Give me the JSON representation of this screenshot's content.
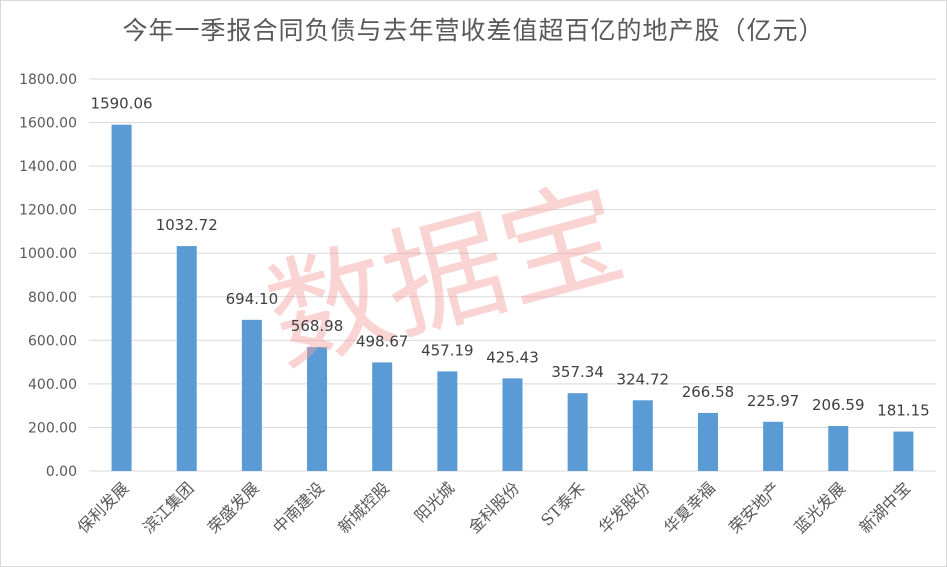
{
  "chart_data": {
    "type": "bar",
    "title": "今年一季报合同负债与去年营收差值超百亿的地产股（亿元）",
    "categories": [
      "保利发展",
      "滨江集团",
      "荣盛发展",
      "中南建设",
      "新城控股",
      "阳光城",
      "金科股份",
      "ST泰禾",
      "华发股份",
      "华夏幸福",
      "荣安地产",
      "蓝光发展",
      "新湖中宝"
    ],
    "values": [
      1590.06,
      1032.72,
      694.1,
      568.98,
      498.67,
      457.19,
      425.43,
      357.34,
      324.72,
      266.58,
      225.97,
      206.59,
      181.15
    ],
    "value_labels": [
      "1590.06",
      "1032.72",
      "694.10",
      "568.98",
      "498.67",
      "457.19",
      "425.43",
      "357.34",
      "324.72",
      "266.58",
      "225.97",
      "206.59",
      "181.15"
    ],
    "yticks": [
      "0.00",
      "200.00",
      "400.00",
      "600.00",
      "800.00",
      "1000.00",
      "1200.00",
      "1400.00",
      "1600.00",
      "1800.00"
    ],
    "ylim": [
      0,
      1800
    ],
    "grid": true,
    "legend": false,
    "bar_color": "#5b9bd5",
    "grid_color": "#d9d9d9",
    "watermark_text": "数据宝",
    "watermark_color": "#f4a0a0"
  }
}
